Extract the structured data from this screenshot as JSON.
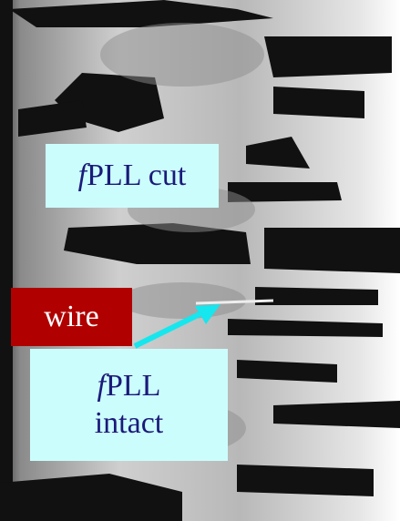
{
  "labels": [
    {
      "prefix": "f",
      "lines": [
        "PLL cut"
      ]
    },
    {
      "lines": [
        "wire"
      ]
    },
    {
      "prefix": "f",
      "lines": [
        "PLL",
        "intact"
      ]
    }
  ]
}
